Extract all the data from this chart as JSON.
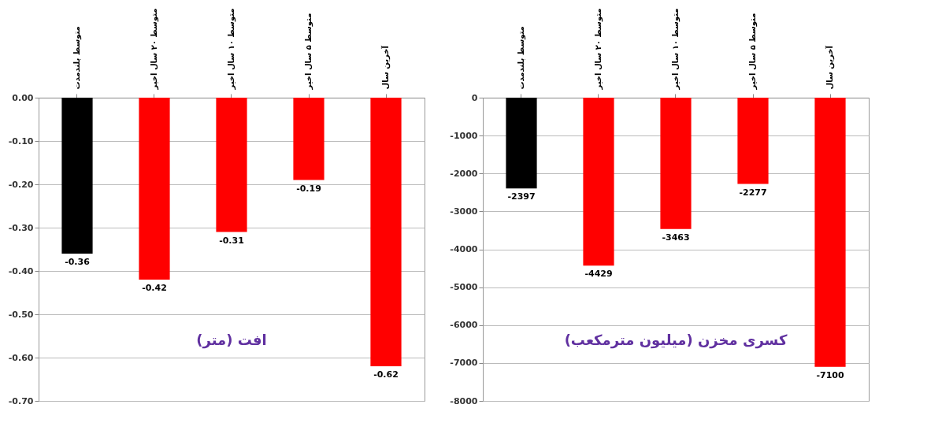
{
  "chart_data": [
    {
      "type": "bar",
      "title": "افت (متر)",
      "categories": [
        "متوسط بلندمدت",
        "متوسط ۲۰ سال اخیر",
        "متوسط ۱۰ سال اخیر",
        "متوسط ۵ سال اخیر",
        "آخرین سال"
      ],
      "values": [
        -0.36,
        -0.42,
        -0.31,
        -0.19,
        -0.62
      ],
      "colors": [
        "#000000",
        "#ff0000",
        "#ff0000",
        "#ff0000",
        "#ff0000"
      ],
      "ylim": [
        -0.7,
        0
      ],
      "yticks": [
        {
          "value": -0.7,
          "label": "-0.70"
        },
        {
          "value": -0.6,
          "label": "-0.60"
        },
        {
          "value": -0.5,
          "label": "-0.50"
        },
        {
          "value": -0.4,
          "label": "-0.40"
        },
        {
          "value": -0.3,
          "label": "-0.30"
        },
        {
          "value": -0.2,
          "label": "-0.20"
        },
        {
          "value": -0.1,
          "label": "-0.10"
        },
        {
          "value": 0,
          "label": "0.00"
        }
      ],
      "grid": "y",
      "data_labels": true
    },
    {
      "type": "bar",
      "title": "کسری مخزن (میلیون مترمکعب)",
      "categories": [
        "متوسط بلندمدت",
        "متوسط ۲۰ سال اخیر",
        "متوسط ۱۰ سال اخیر",
        "متوسط ۵ سال اخیر",
        "آخرین سال"
      ],
      "values": [
        -2397,
        -4429,
        -3463,
        -2277,
        -7100
      ],
      "colors": [
        "#000000",
        "#ff0000",
        "#ff0000",
        "#ff0000",
        "#ff0000"
      ],
      "ylim": [
        -8000,
        0
      ],
      "yticks": [
        -8000,
        -7000,
        -6000,
        -5000,
        -4000,
        -3000,
        -2000,
        -1000,
        0
      ],
      "grid": "y",
      "data_labels": true
    }
  ]
}
